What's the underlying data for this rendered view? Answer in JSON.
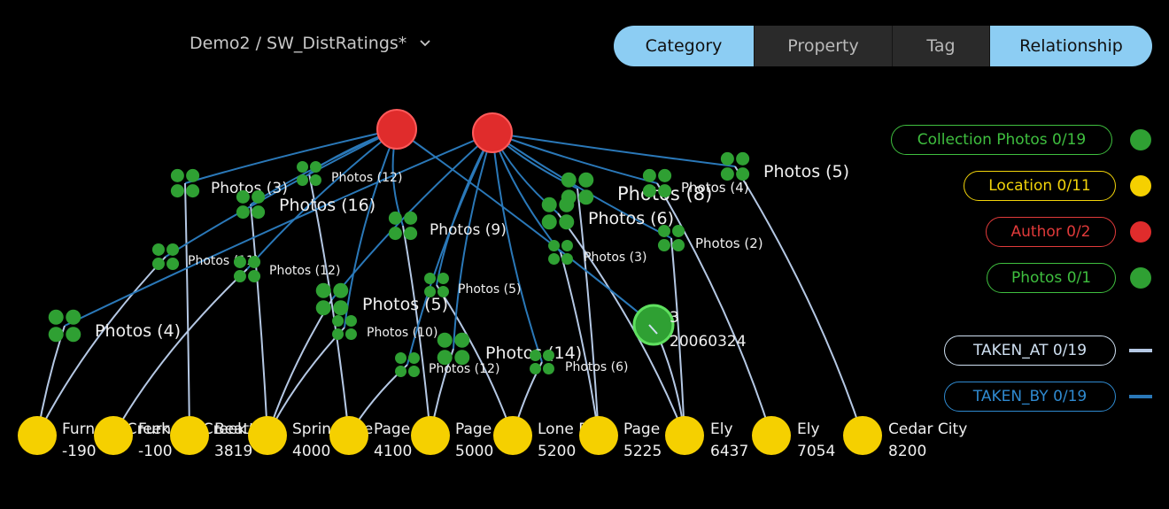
{
  "header": {
    "breadcrumb": "Demo2 / SW_DistRatings*",
    "tabs": [
      {
        "label": "Category",
        "active": true
      },
      {
        "label": "Property",
        "active": false
      },
      {
        "label": "Tag",
        "active": false
      },
      {
        "label": "Relationship",
        "active": true
      }
    ]
  },
  "legend": {
    "nodes": [
      {
        "label": "Collection Photos 0/19",
        "color": "#2fa033",
        "text_color": "#3fbf3f"
      },
      {
        "label": "Location 0/11",
        "color": "#f5d000",
        "text_color": "#f2d40a"
      },
      {
        "label": "Author 0/2",
        "color": "#e02c2c",
        "text_color": "#e03a3a"
      },
      {
        "label": "Photos 0/1",
        "color": "#2fa033",
        "text_color": "#3fbf3f"
      }
    ],
    "edges": [
      {
        "label": "TAKEN_AT 0/19",
        "color": "#b5c8e4",
        "text_color": "#cfe0f2"
      },
      {
        "label": "TAKEN_BY 0/19",
        "color": "#2a78b8",
        "text_color": "#2f8ad0"
      }
    ]
  },
  "graph": {
    "authors": [
      "",
      ""
    ],
    "selected_photo": {
      "line1": "3",
      "line2": "20060324"
    },
    "photo_clusters": [
      "Photos (3)",
      "Photos (12)",
      "Photos (16)",
      "Photos (11)",
      "Photos (12)",
      "Photos (9)",
      "Photos (4)",
      "Photos (5)",
      "Photos (5)",
      "Photos (10)",
      "Photos (12)",
      "Photos (14)",
      "Photos (6)",
      "Photos (8)",
      "Photos (6)",
      "Photos (4)",
      "Photos (5)",
      "Photos (3)",
      "Photos (2)"
    ],
    "locations": [
      {
        "name": "Furnace Creek",
        "value": "-190"
      },
      {
        "name": "Furnace Creek",
        "value": "-100"
      },
      {
        "name": "Beatty",
        "value": "3819"
      },
      {
        "name": "Springdale",
        "value": "4000"
      },
      {
        "name": "Page",
        "value": "4100"
      },
      {
        "name": "Page",
        "value": "5000"
      },
      {
        "name": "Lone Pine",
        "value": "5200"
      },
      {
        "name": "Page",
        "value": "5225"
      },
      {
        "name": "Ely",
        "value": "6437"
      },
      {
        "name": "Ely",
        "value": "7054"
      },
      {
        "name": "Cedar City",
        "value": "8200"
      }
    ]
  }
}
